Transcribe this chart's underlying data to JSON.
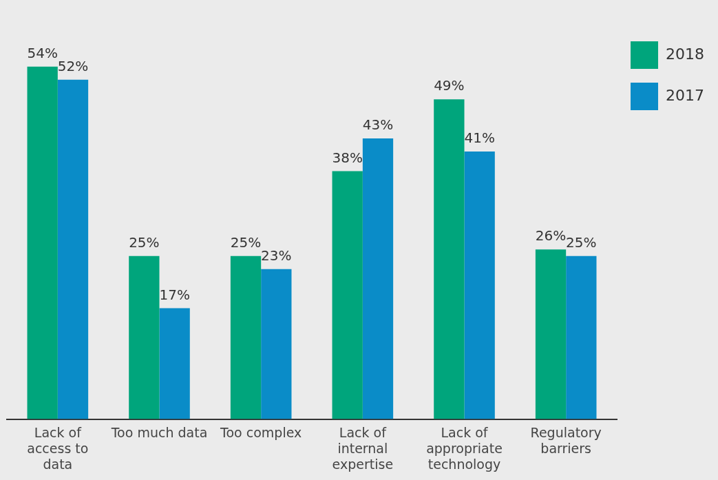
{
  "chart_data": {
    "type": "bar",
    "categories": [
      "Lack of access to data",
      "Too much data",
      "Too complex",
      "Lack of internal expertise",
      "Lack of appropriate technology",
      "Regulatory barriers"
    ],
    "series": [
      {
        "name": "2018",
        "color": "#00a57c",
        "values": [
          54,
          25,
          25,
          38,
          49,
          26
        ],
        "value_labels": [
          "54%",
          "25%",
          "25%",
          "38%",
          "49%",
          "26%"
        ]
      },
      {
        "name": "2017",
        "color": "#0a8cc8",
        "values": [
          52,
          17,
          23,
          43,
          41,
          25
        ],
        "value_labels": [
          "52%",
          "17%",
          "23%",
          "43%",
          "41%",
          "25%"
        ]
      }
    ],
    "grid": false,
    "legend": "top right"
  }
}
